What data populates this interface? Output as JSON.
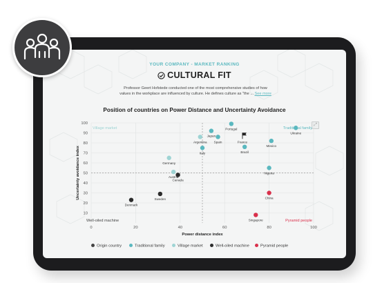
{
  "header": {
    "subtitle": "YOUR COMPANY - MARKET RANKING",
    "title": "CULTURAL FIT",
    "description_line1": "Professor Geert Hofstede conducted one of the most comprehensive studies of how",
    "description_line2": "values in the workplace are influenced by culture. He defines culture as \"the ...",
    "see_more": "See more"
  },
  "icons": {
    "team": "team-people-icon",
    "title": "check-circle-icon",
    "expand": "expand-icon"
  },
  "colors": {
    "accent": "#5ab8bf",
    "origin": "#444444",
    "traditional": "#5ab8bf",
    "village": "#9ed4d4",
    "well_oiled": "#2b2b2b",
    "pyramid": "#d9304b"
  },
  "chart_data": {
    "type": "scatter",
    "title": "Position of countries on Power Distance and Uncertainty Avoidance",
    "xlabel": "Power distance index",
    "ylabel": "Uncertainty avoidance index",
    "xlim": [
      0,
      100
    ],
    "ylim": [
      0,
      100
    ],
    "x_ticks": [
      0,
      20,
      40,
      60,
      80,
      100
    ],
    "y_ticks": [
      10,
      20,
      30,
      40,
      50,
      60,
      70,
      80,
      90,
      100
    ],
    "grid": true,
    "divider_lines": {
      "x": 50,
      "y": 50
    },
    "quadrant_labels": {
      "top_left": "Village market",
      "top_right": "Traditional family",
      "bottom_left": "Well-oiled machine",
      "bottom_right": "Pyramid people"
    },
    "legend_position": "bottom",
    "series": [
      {
        "name": "Origin country",
        "key": "origin",
        "points": [
          {
            "label": "France",
            "x": 68,
            "y": 86
          }
        ]
      },
      {
        "name": "Traditional family",
        "key": "traditional",
        "points": [
          {
            "label": "Portugal",
            "x": 63,
            "y": 99
          },
          {
            "label": "Japan",
            "x": 54,
            "y": 92
          },
          {
            "label": "Spain",
            "x": 57,
            "y": 86
          },
          {
            "label": "Italy",
            "x": 50,
            "y": 75
          },
          {
            "label": "Brazil",
            "x": 69,
            "y": 76
          },
          {
            "label": "Mexico",
            "x": 81,
            "y": 82
          },
          {
            "label": "Ukraine",
            "x": 92,
            "y": 95
          },
          {
            "label": "Nigeria",
            "x": 80,
            "y": 55
          }
        ]
      },
      {
        "name": "Village market",
        "key": "village",
        "points": [
          {
            "label": "Argentina",
            "x": 49,
            "y": 86
          },
          {
            "label": "Germany",
            "x": 35,
            "y": 65
          },
          {
            "label": "Austria",
            "x": 37,
            "y": 51
          }
        ]
      },
      {
        "name": "Well-oiled machine",
        "key": "well_oiled",
        "points": [
          {
            "label": "Canada",
            "x": 39,
            "y": 48
          },
          {
            "label": "Sweden",
            "x": 31,
            "y": 29
          },
          {
            "label": "Denmark",
            "x": 18,
            "y": 23
          }
        ]
      },
      {
        "name": "Pyramid people",
        "key": "pyramid",
        "points": [
          {
            "label": "China",
            "x": 80,
            "y": 30
          },
          {
            "label": "Singapore",
            "x": 74,
            "y": 8
          }
        ]
      }
    ]
  }
}
